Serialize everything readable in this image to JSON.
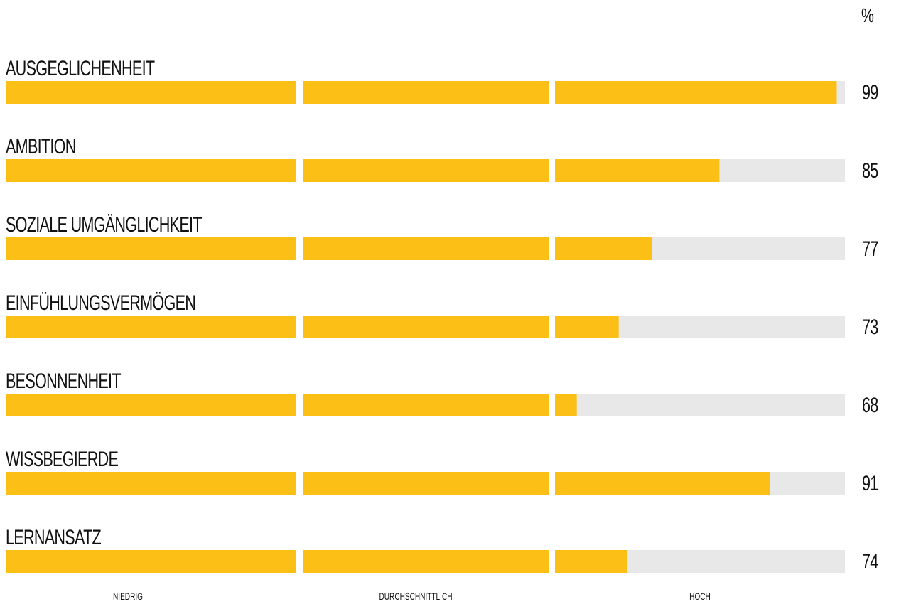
{
  "unit": "%",
  "colors": {
    "fill": "#fbbf16",
    "track": "#e8e8e8",
    "text": "#111111",
    "rule": "#8c8c8c"
  },
  "chart_data": {
    "type": "bar",
    "orientation": "horizontal",
    "categories": [
      "AUSGEGLICHENHEIT",
      "AMBITION",
      "SOZIALE UMGÄNGLICHKEIT",
      "EINFÜHLUNGSVERMÖGEN",
      "BESONNENHEIT",
      "WISSBEGIERDE",
      "LERNANSATZ"
    ],
    "values": [
      99,
      85,
      77,
      73,
      68,
      91,
      74
    ],
    "bands": [
      "NIEDRIG",
      "DURCHSCHNITTLICH",
      "HOCH"
    ],
    "xlim": [
      0,
      100
    ],
    "ylabel": "%",
    "grid": false,
    "legend": "none"
  }
}
